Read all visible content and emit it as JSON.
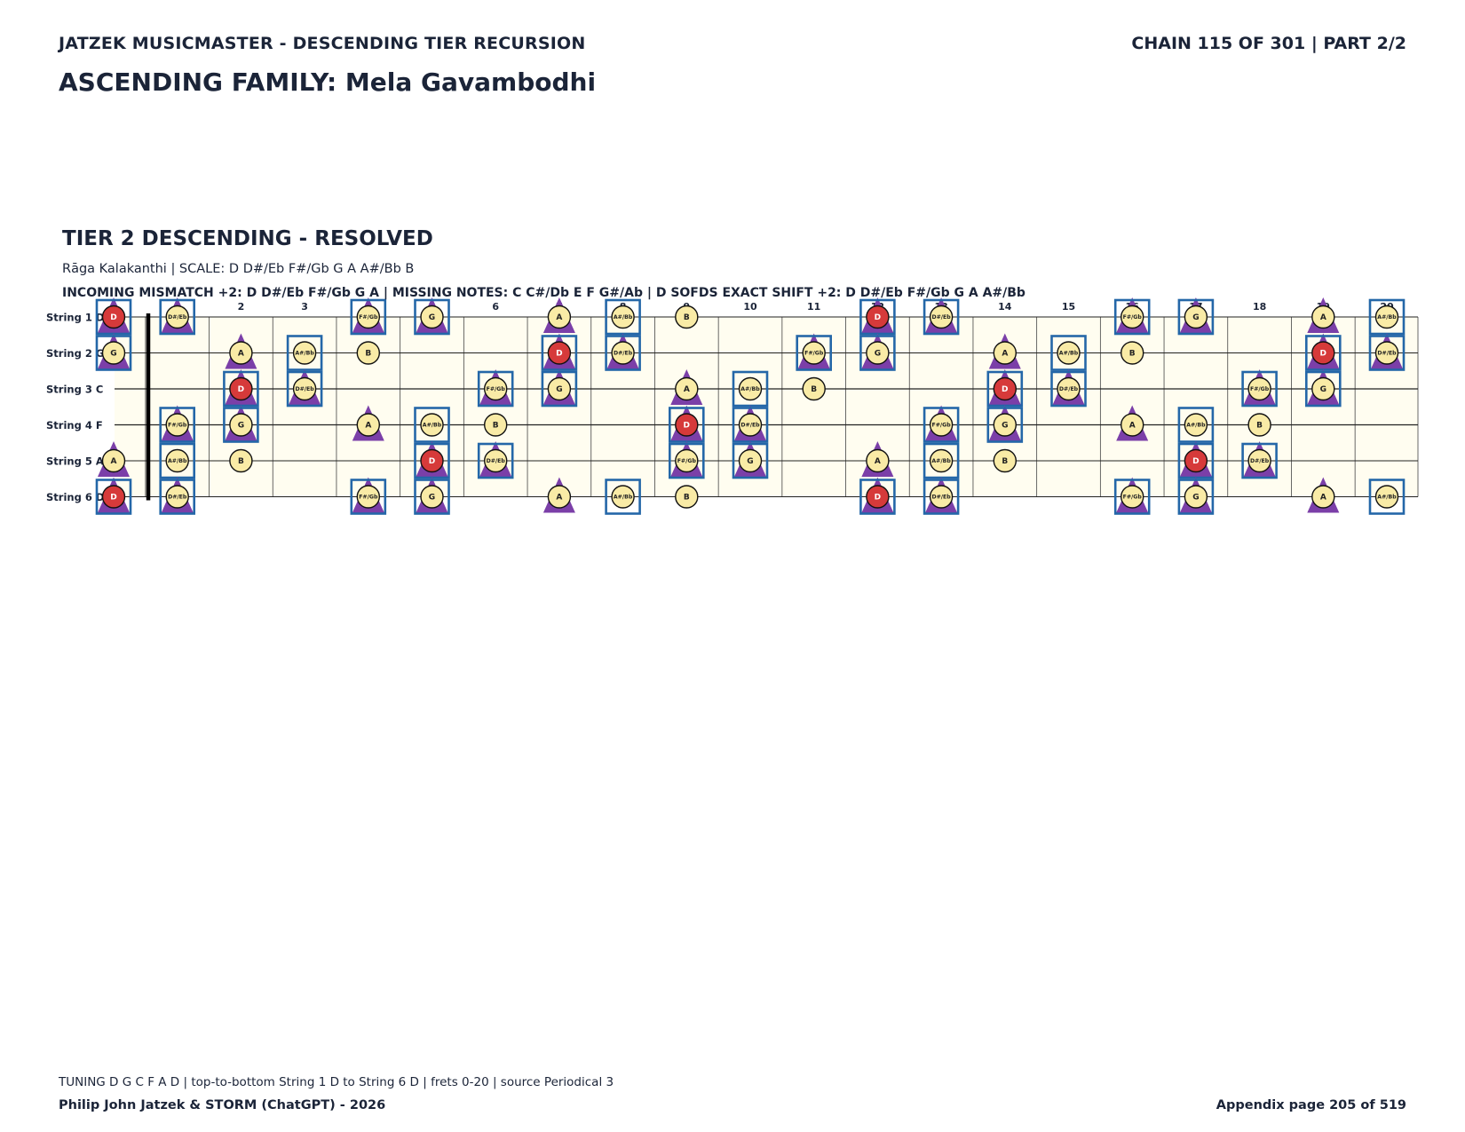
{
  "header": {
    "series_title": "JATZEK MUSICMASTER - DESCENDING TIER RECURSION",
    "chain_info": "CHAIN 115 OF 301  |  PART 2/2",
    "family_title": "ASCENDING FAMILY: Mela Gavambodhi"
  },
  "section": {
    "tier_title": "TIER 2 DESCENDING - RESOLVED",
    "raga_line": "Rāga Kalakanthi  |  SCALE: D D#/Eb F#/Gb G A A#/Bb B",
    "mismatch_line": "INCOMING MISMATCH +2: D D#/Eb F#/Gb G A  |  MISSING NOTES: C C#/Db E F G#/Ab  |  D SOFDS EXACT SHIFT +2: D D#/Eb F#/Gb G A A#/Bb"
  },
  "fretboard": {
    "frets": [
      "0",
      "1",
      "2",
      "3",
      "4",
      "5",
      "6",
      "7",
      "8",
      "9",
      "10",
      "11",
      "12",
      "13",
      "14",
      "15",
      "16",
      "17",
      "18",
      "19",
      "20"
    ],
    "strings": [
      {
        "label": "String 1 D",
        "open": "D"
      },
      {
        "label": "String 2 G",
        "open": "G"
      },
      {
        "label": "String 3 C",
        "open": "C"
      },
      {
        "label": "String 4 F",
        "open": "F"
      },
      {
        "label": "String 5 A",
        "open": "A"
      },
      {
        "label": "String 6 D",
        "open": "D"
      }
    ],
    "chromatic": [
      "C",
      "C#/Db",
      "D",
      "D#/Eb",
      "E",
      "F",
      "F#/Gb",
      "G",
      "G#/Ab",
      "A",
      "A#/Bb",
      "B"
    ],
    "scale_notes": [
      "D",
      "D#/Eb",
      "F#/Gb",
      "G",
      "A",
      "A#/Bb",
      "B"
    ],
    "root_note": "D",
    "triangle_notes": [
      "D",
      "D#/Eb",
      "F#/Gb",
      "G",
      "A"
    ],
    "boxed_notes": [
      "D",
      "D#/Eb",
      "F#/Gb",
      "G",
      "A#/Bb"
    ],
    "colors": {
      "root_fill": "#d63a3a",
      "note_fill": "#f9eba6",
      "triangle": "#7b3fa8",
      "box": "#2467a8",
      "board_bg": "#fffdf0"
    }
  },
  "footer": {
    "tuning_line": "TUNING D G C F A D | top-to-bottom String 1 D to String 6 D | frets 0-20 | source Periodical 3",
    "credits": "Philip John Jatzek & STORM (ChatGPT) - 2026",
    "appendix": "Appendix page 205 of 519"
  }
}
